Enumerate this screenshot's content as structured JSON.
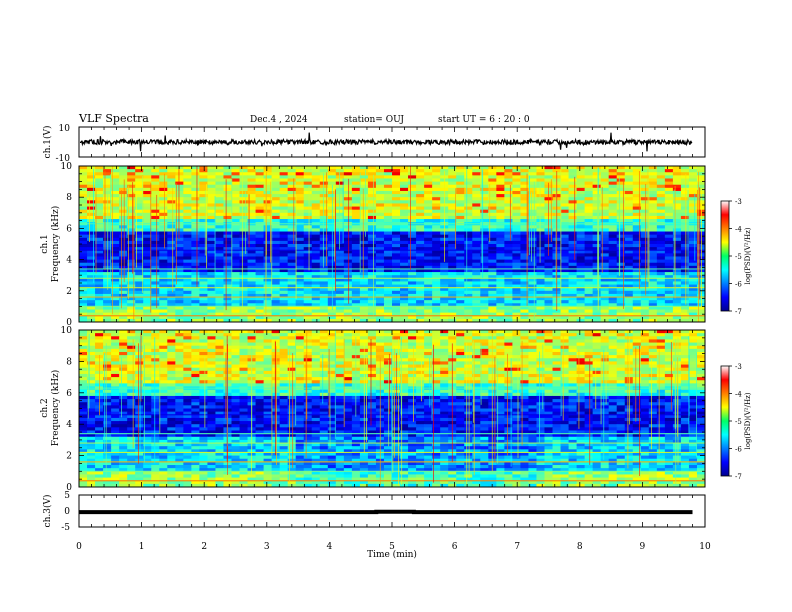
{
  "header": {
    "title": "VLF Spectra",
    "date": "Dec.4 , 2024",
    "station": "station= OUJ",
    "start": "start UT =  6 : 20 : 0"
  },
  "chart_data": [
    {
      "type": "line",
      "panel": "ch1-waveform",
      "ylabel": "ch.1(V)",
      "ylim": [
        -10,
        10
      ],
      "yticks": [
        "10",
        "-10"
      ],
      "x": [
        0,
        1,
        2,
        3,
        4,
        5,
        6,
        7,
        8,
        9,
        9.8
      ],
      "y": [
        0,
        0,
        0,
        0,
        0,
        0,
        0,
        0,
        0,
        0,
        0
      ]
    },
    {
      "type": "heatmap",
      "panel": "ch1-spectrogram",
      "ylabel": "ch.1\nFrequency (kHz)",
      "ylabel_lines": [
        "ch.1",
        "Frequency (kHz)"
      ],
      "ylim": [
        0,
        10
      ],
      "yticks": [
        "0",
        "2",
        "4",
        "6",
        "8",
        "10"
      ],
      "colorbar": {
        "label": "log(PSD)(V²/Hz)",
        "range": [
          -7,
          -3
        ],
        "ticks": [
          "-3",
          "-4",
          "-5",
          "-6",
          "-7"
        ]
      }
    },
    {
      "type": "heatmap",
      "panel": "ch2-spectrogram",
      "ylabel_lines": [
        "ch.2",
        "Frequency (kHz)"
      ],
      "ylim": [
        0,
        10
      ],
      "yticks": [
        "0",
        "2",
        "4",
        "6",
        "8",
        "10"
      ],
      "colorbar": {
        "label": "log(PSD)(V²/Hz)",
        "range": [
          -7,
          -3
        ],
        "ticks": [
          "-3",
          "-4",
          "-5",
          "-6",
          "-7"
        ]
      }
    },
    {
      "type": "line",
      "panel": "ch3-waveform",
      "ylabel": "ch.3(V)",
      "ylim": [
        -5,
        5
      ],
      "yticks": [
        "5",
        "0",
        "-5"
      ],
      "x": [
        0,
        4.75,
        4.75,
        5.35,
        5.35,
        9.8
      ],
      "y": [
        -0.2,
        -0.2,
        -0.05,
        -0.05,
        -0.2,
        -0.2
      ]
    }
  ],
  "xaxis": {
    "label": "Time (min)",
    "range": [
      0,
      10
    ],
    "ticks": [
      "0",
      "1",
      "2",
      "3",
      "4",
      "5",
      "6",
      "7",
      "8",
      "9",
      "10"
    ]
  },
  "colors": {
    "low": "#00008f",
    "mid": "#00e000",
    "high": "#ff0000"
  }
}
